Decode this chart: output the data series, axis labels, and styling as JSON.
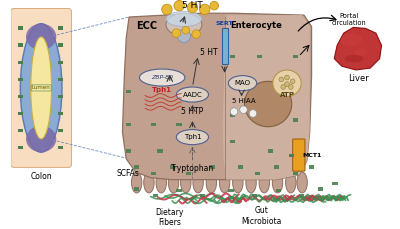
{
  "bg_color": "#ffffff",
  "colon_label": "Colon",
  "lumen_label": "Lumen",
  "ecc_label": "ECC",
  "enterocyte_label": "Enterocyte",
  "liver_label": "Liver",
  "portal_label": "Portal\ncirculation",
  "scfas_label": "SCFAs",
  "tryptophan_label": "Tryptophan",
  "dietary_label": "Dietary\nFibers",
  "gut_label": "Gut\nMicrobiota",
  "label_5ht_top": "5 HT",
  "label_5ht_inner": "5 HT",
  "label_5htp": "5 HTP",
  "label_5hiaa": "5 HIAA",
  "label_aadc": "AADC",
  "label_mao": "MAO",
  "label_tph1_zbp": "Tph1",
  "label_tph1_bot": "Tph1",
  "label_zbp89": "ZBP-89",
  "label_atp": "ATP",
  "label_mct1": "MCT1",
  "label_sert": "SERT",
  "cell_color": "#c2a090",
  "cell_color2": "#cdb09f",
  "lumen_color": "#f5e6a0",
  "colon_bg": "#f8ddc0",
  "colon_outer": "#8baad4",
  "colon_purple": "#7a68a8",
  "green_sq_color": "#4a8050",
  "sert_color": "#7ab0d8",
  "mct1_color": "#e8a020",
  "enzyme_fill": "#ddd0c0",
  "nucleus_color": "#9a7050",
  "atp_color": "#e8d0a8",
  "vesicle_color": "#e8b838",
  "vesicle_edge": "#c09010",
  "white_circle": "#f0f0f0",
  "zbp_fill": "#e8e0d8",
  "arrow_color": "#333333",
  "dashed_color": "#7090c0",
  "liver_color": "#c03030",
  "liver_dark": "#901010",
  "indentation_color": "#b09888",
  "top_indentation": "#d0c0b8"
}
